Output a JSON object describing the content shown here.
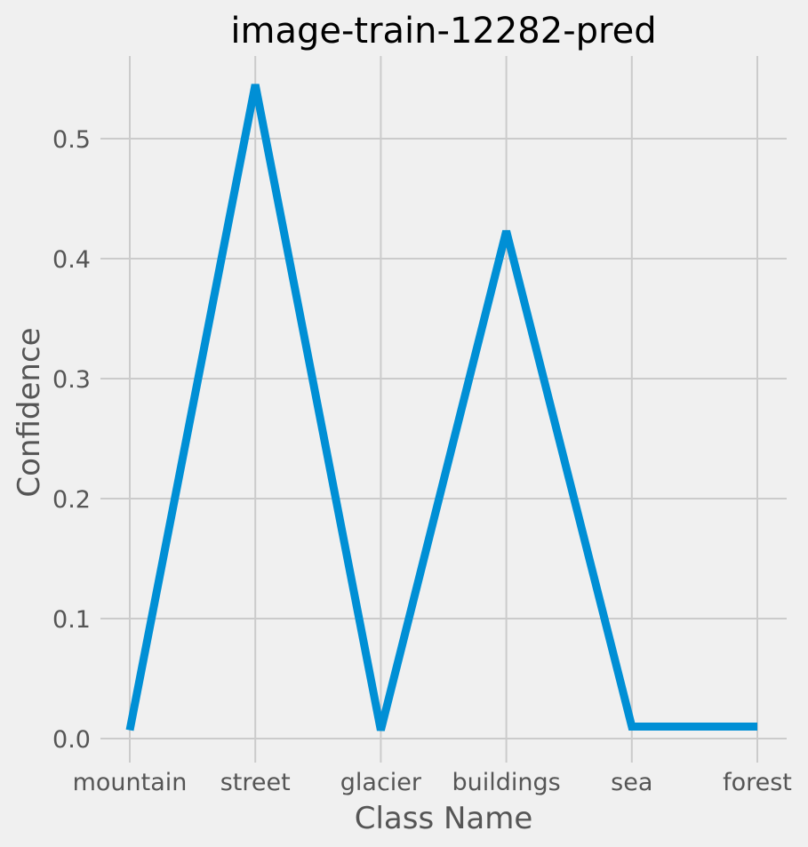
{
  "chart_data": {
    "type": "line",
    "title": "image-train-12282-pred",
    "xlabel": "Class Name",
    "ylabel": "Confidence",
    "categories": [
      "mountain",
      "street",
      "glacier",
      "buildings",
      "sea",
      "forest"
    ],
    "series": [
      {
        "values": [
          0.007,
          0.545,
          0.007,
          0.423,
          0.01,
          0.01
        ]
      }
    ],
    "ylim": [
      -0.008,
      0.57
    ],
    "yticks": [
      0.0,
      0.1,
      0.2,
      0.3,
      0.4,
      0.5
    ],
    "ytick_labels": [
      "0.0",
      "0.1",
      "0.2",
      "0.3",
      "0.4",
      "0.5"
    ],
    "grid": true,
    "colors": {
      "line": "#008fd5",
      "background": "#f0f0f0",
      "grid": "#cbcbcb"
    }
  }
}
